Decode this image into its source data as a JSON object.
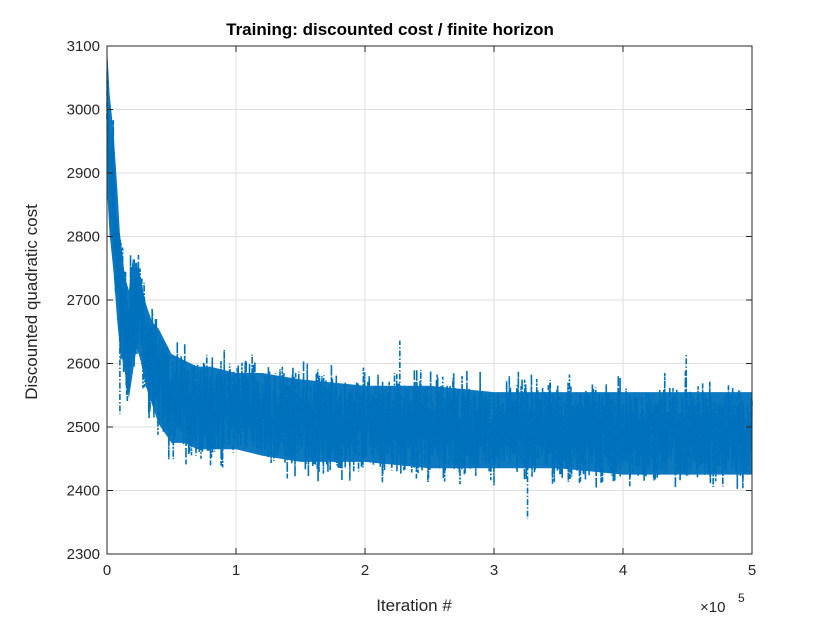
{
  "chart_data": {
    "type": "line",
    "title": "Training: discounted cost / finite horizon",
    "xlabel": "Iteration #",
    "ylabel": "Discounted quadratic cost",
    "x_multiplier_label": "×10",
    "x_multiplier_exponent": "5",
    "xlim": [
      0,
      500000
    ],
    "ylim": [
      2300,
      3100
    ],
    "x_tick_values": [
      0,
      100000,
      200000,
      300000,
      400000,
      500000
    ],
    "x_tick_labels": [
      "0",
      "1",
      "2",
      "3",
      "4",
      "5"
    ],
    "y_tick_values": [
      2300,
      2400,
      2500,
      2600,
      2700,
      2800,
      2900,
      3000,
      3100
    ],
    "y_tick_labels": [
      "2300",
      "2400",
      "2500",
      "2600",
      "2700",
      "2800",
      "2900",
      "3000",
      "3100"
    ],
    "grid": true,
    "series": [
      {
        "color": "#0072BD",
        "style": "dash-dot",
        "envelope": {
          "x": [
            0,
            2000,
            5000,
            8000,
            10000,
            14000,
            17000,
            20000,
            23000,
            26000,
            30000,
            35000,
            40000,
            50000,
            60000,
            70000,
            80000,
            100000,
            120000,
            150000,
            200000,
            250000,
            300000,
            350000,
            400000,
            450000,
            500000
          ],
          "upper": [
            3100,
            3050,
            2990,
            2900,
            2830,
            2760,
            2740,
            2790,
            2780,
            2760,
            2720,
            2690,
            2680,
            2640,
            2630,
            2620,
            2620,
            2610,
            2610,
            2600,
            2590,
            2590,
            2580,
            2580,
            2580,
            2580,
            2580
          ],
          "lower": [
            2850,
            2780,
            2720,
            2640,
            2600,
            2560,
            2520,
            2560,
            2600,
            2580,
            2540,
            2510,
            2480,
            2450,
            2450,
            2440,
            2440,
            2440,
            2430,
            2420,
            2420,
            2410,
            2410,
            2410,
            2400,
            2400,
            2400
          ]
        },
        "spikes": [
          {
            "x": 227000,
            "y": 2636
          },
          {
            "x": 326000,
            "y": 2355
          },
          {
            "x": 449000,
            "y": 2615
          },
          {
            "x": 95000,
            "y": 2600
          },
          {
            "x": 10000,
            "y": 2520
          }
        ]
      }
    ]
  }
}
